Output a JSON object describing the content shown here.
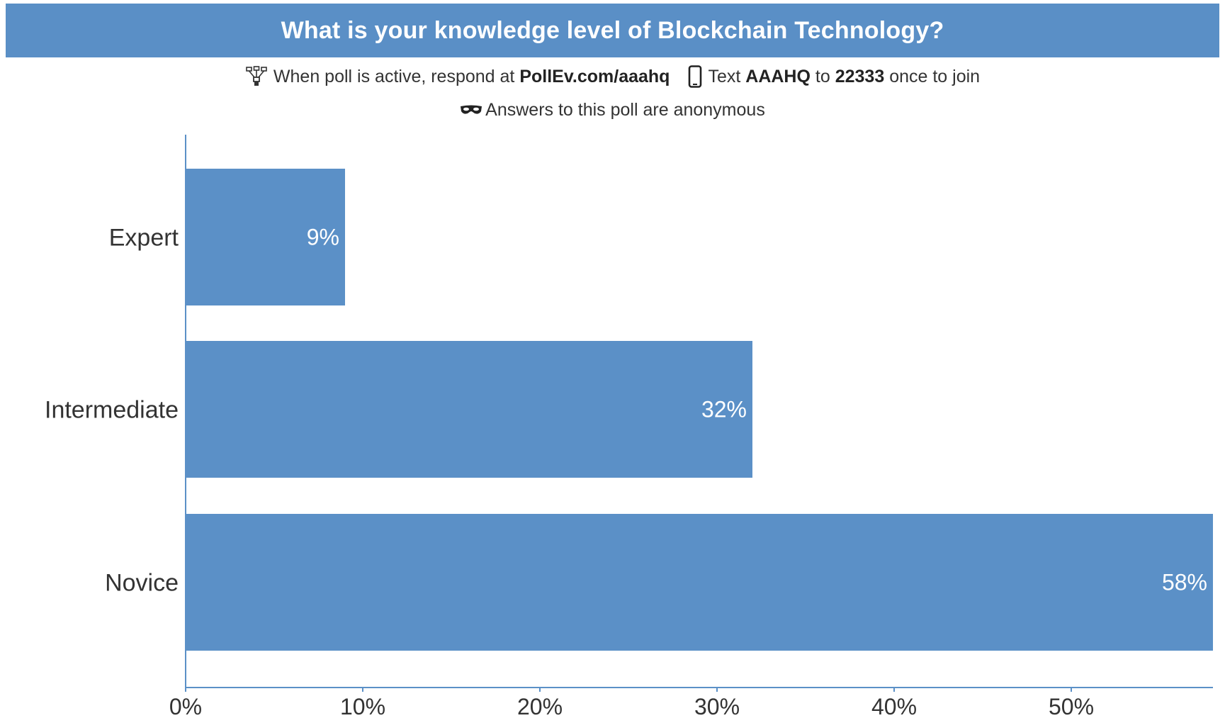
{
  "header": {
    "title": "What is your knowledge level of Blockchain Technology?",
    "respond_prefix": "When poll is active, respond at",
    "respond_url": "PollEv.com/aaahq",
    "text_prefix": "Text",
    "text_code": "AAAHQ",
    "text_to": "to",
    "text_number": "22333",
    "text_suffix": "once to join",
    "anonymous_note": "Answers to this poll are anonymous",
    "icons": [
      "network-icon",
      "phone-icon",
      "mask-icon"
    ]
  },
  "colors": {
    "bar": "#5b90c7",
    "title_bg": "#5a8fc6",
    "axis": "#5b90c7"
  },
  "chart_data": {
    "type": "bar",
    "orientation": "horizontal",
    "categories": [
      "Expert",
      "Intermediate",
      "Novice"
    ],
    "values": [
      9,
      32,
      58
    ],
    "value_labels": [
      "9%",
      "32%",
      "58%"
    ],
    "xlim": [
      0,
      58
    ],
    "x_ticks": [
      0,
      10,
      20,
      30,
      40,
      50
    ],
    "x_tick_labels": [
      "0%",
      "10%",
      "20%",
      "30%",
      "40%",
      "50%"
    ],
    "grid": false,
    "legend": "none"
  }
}
